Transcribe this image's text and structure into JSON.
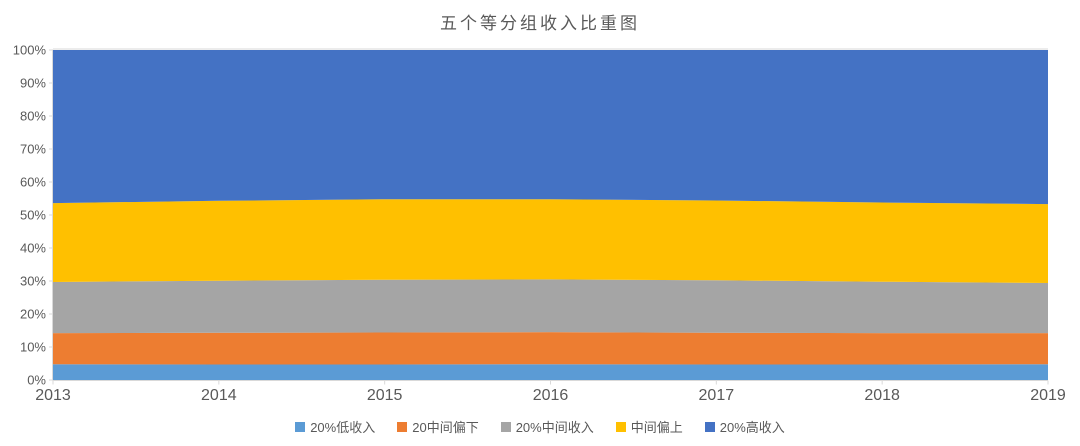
{
  "chart_data": {
    "type": "area",
    "stacked": true,
    "percent_stacked": true,
    "title": "五个等分组收入比重图",
    "x": [
      "2013",
      "2014",
      "2015",
      "2016",
      "2017",
      "2018",
      "2019"
    ],
    "series": [
      {
        "name": "20%低收入",
        "color": "#5B9BD5",
        "values": [
          4.8,
          4.7,
          4.7,
          4.8,
          4.7,
          4.7,
          4.8
        ]
      },
      {
        "name": "20中间偏下",
        "color": "#ED7D31",
        "values": [
          9.4,
          9.6,
          9.7,
          9.7,
          9.6,
          9.5,
          9.4
        ]
      },
      {
        "name": "20%中间收入",
        "color": "#A5A5A5",
        "values": [
          15.5,
          15.8,
          16.0,
          16.0,
          15.9,
          15.6,
          15.2
        ]
      },
      {
        "name": "中间偏上",
        "color": "#FFC000",
        "values": [
          23.9,
          24.2,
          24.4,
          24.3,
          24.2,
          24.0,
          23.9
        ]
      },
      {
        "name": "20%高收入",
        "color": "#4472C4",
        "values": [
          46.4,
          45.7,
          45.2,
          45.2,
          45.6,
          46.2,
          46.7
        ]
      }
    ],
    "xlabel": "",
    "ylabel": "",
    "ylim": [
      0,
      100
    ],
    "y_ticks": [
      "0%",
      "10%",
      "20%",
      "30%",
      "40%",
      "50%",
      "60%",
      "70%",
      "80%",
      "90%",
      "100%"
    ],
    "grid": false,
    "legend_position": "bottom"
  },
  "colors": {
    "title_text": "#595959",
    "axis_text": "#595959",
    "legend_text": "#595959",
    "axis_line": "#D9D9D9",
    "background": "#FFFFFF"
  }
}
